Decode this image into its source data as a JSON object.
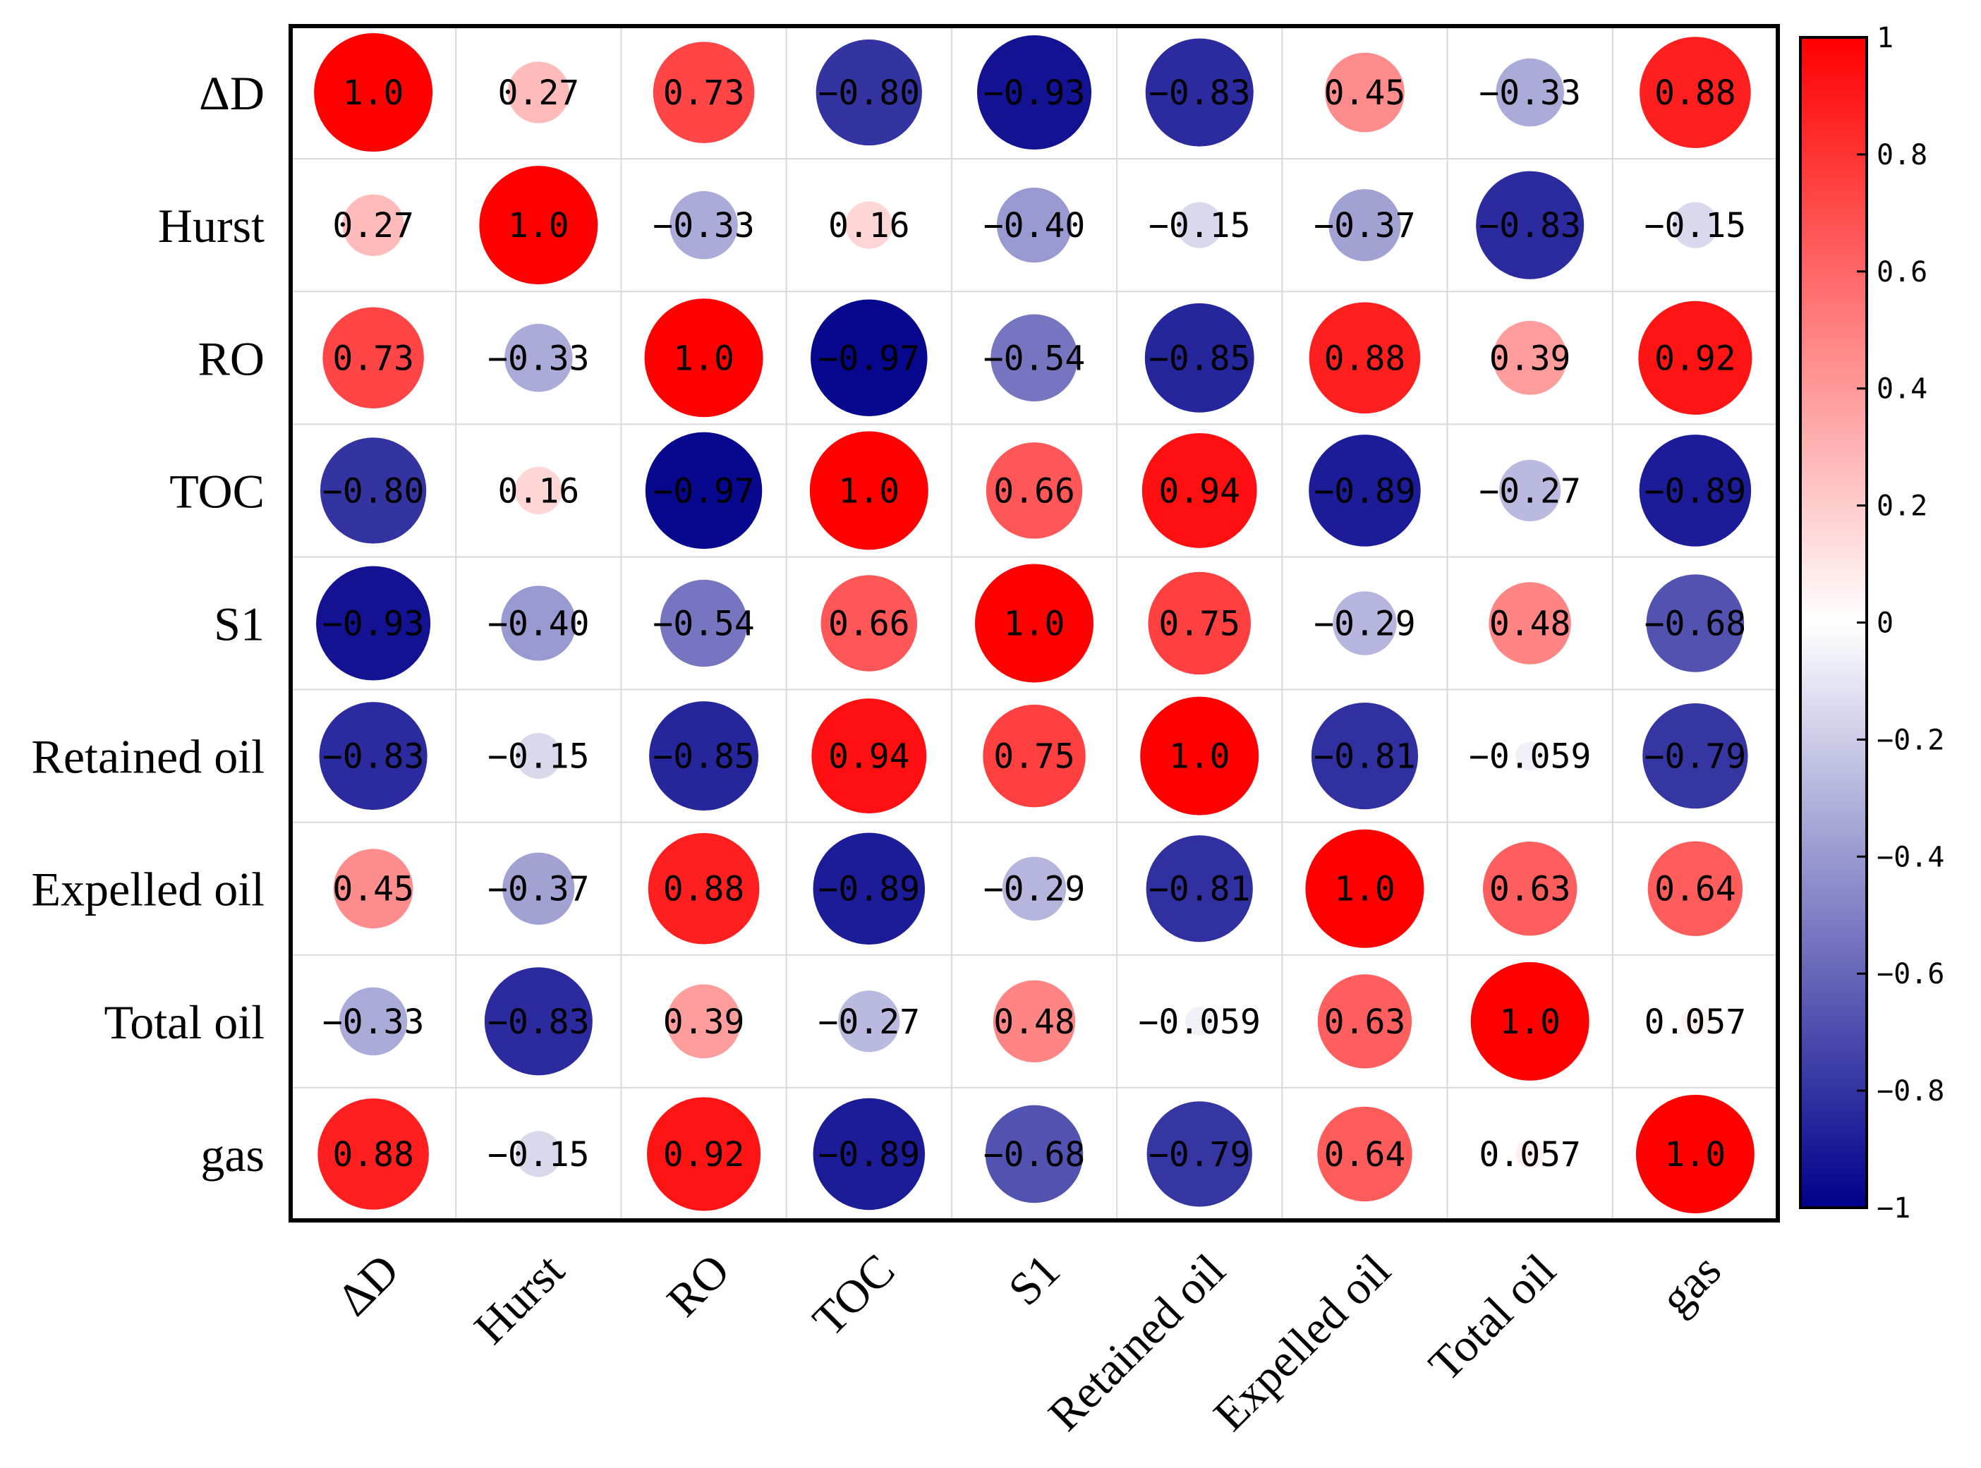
{
  "chart_data": {
    "type": "heatmap",
    "variables": [
      "ΔD",
      "Hurst",
      "RO",
      "TOC",
      "S1",
      "Retained oil",
      "Expelled oil",
      "Total oil",
      "gas"
    ],
    "matrix": [
      [
        1.0,
        0.27,
        0.73,
        -0.8,
        -0.93,
        -0.83,
        0.45,
        -0.33,
        0.88
      ],
      [
        0.27,
        1.0,
        -0.33,
        0.16,
        -0.4,
        -0.15,
        -0.37,
        -0.83,
        -0.15
      ],
      [
        0.73,
        -0.33,
        1.0,
        -0.97,
        -0.54,
        -0.85,
        0.88,
        0.39,
        0.92
      ],
      [
        -0.8,
        0.16,
        -0.97,
        1.0,
        0.66,
        0.94,
        -0.89,
        -0.27,
        -0.89
      ],
      [
        -0.93,
        -0.4,
        -0.54,
        0.66,
        1.0,
        0.75,
        -0.29,
        0.48,
        -0.68
      ],
      [
        -0.83,
        -0.15,
        -0.85,
        0.94,
        0.75,
        1.0,
        -0.81,
        -0.059,
        -0.79
      ],
      [
        0.45,
        -0.37,
        0.88,
        -0.89,
        -0.29,
        -0.81,
        1.0,
        0.63,
        0.64
      ],
      [
        -0.33,
        -0.83,
        0.39,
        -0.27,
        0.48,
        -0.059,
        0.63,
        1.0,
        0.057
      ],
      [
        0.88,
        -0.15,
        0.92,
        -0.89,
        -0.68,
        -0.79,
        0.64,
        0.057,
        1.0
      ]
    ],
    "labels": [
      [
        "1.0",
        "0.27",
        "0.73",
        "−0.80",
        "−0.93",
        "−0.83",
        "0.45",
        "−0.33",
        "0.88"
      ],
      [
        "0.27",
        "1.0",
        "−0.33",
        "0.16",
        "−0.40",
        "−0.15",
        "−0.37",
        "−0.83",
        "−0.15"
      ],
      [
        "0.73",
        "−0.33",
        "1.0",
        "−0.97",
        "−0.54",
        "−0.85",
        "0.88",
        "0.39",
        "0.92"
      ],
      [
        "−0.80",
        "0.16",
        "−0.97",
        "1.0",
        "0.66",
        "0.94",
        "−0.89",
        "−0.27",
        "−0.89"
      ],
      [
        "−0.93",
        "−0.40",
        "−0.54",
        "0.66",
        "1.0",
        "0.75",
        "−0.29",
        "0.48",
        "−0.68"
      ],
      [
        "−0.83",
        "−0.15",
        "−0.85",
        "0.94",
        "0.75",
        "1.0",
        "−0.81",
        "−0.059",
        "−0.79"
      ],
      [
        "0.45",
        "−0.37",
        "0.88",
        "−0.89",
        "−0.29",
        "−0.81",
        "1.0",
        "0.63",
        "0.64"
      ],
      [
        "−0.33",
        "−0.83",
        "0.39",
        "−0.27",
        "0.48",
        "−0.059",
        "0.63",
        "1.0",
        "0.057"
      ],
      [
        "0.88",
        "−0.15",
        "0.92",
        "−0.89",
        "−0.68",
        "−0.79",
        "0.64",
        "0.057",
        "1.0"
      ]
    ],
    "value_range": [
      -1,
      1
    ],
    "colorbar": {
      "ticks": [
        1,
        0.8,
        0.6,
        0.4,
        0.2,
        0,
        -0.2,
        -0.4,
        -0.6,
        -0.8,
        -1
      ],
      "tick_labels": [
        "1",
        "0.8",
        "0.6",
        "0.4",
        "0.2",
        "0",
        "−0.2",
        "−0.4",
        "−0.6",
        "−0.8",
        "−1"
      ],
      "colors": {
        "max": "#ff0000",
        "mid": "#ffffff",
        "min": "#00008b"
      }
    },
    "marker": "circle",
    "grid": true
  }
}
